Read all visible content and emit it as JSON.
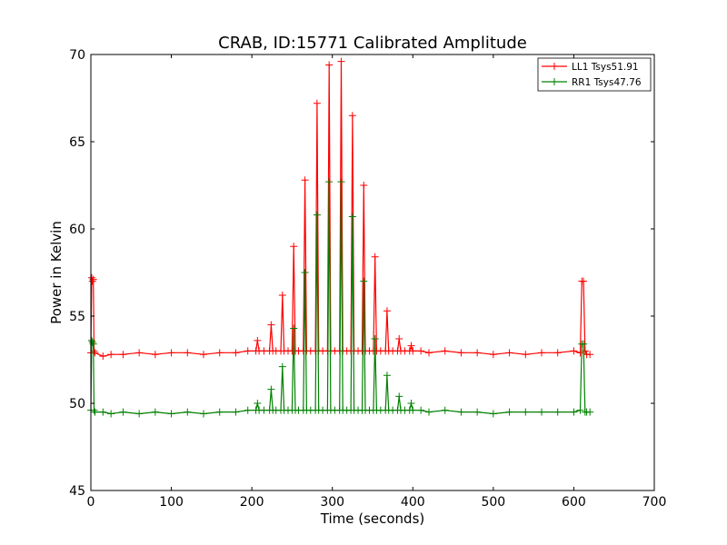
{
  "chart_data": {
    "type": "line",
    "title": "CRAB, ID:15771 Calibrated Amplitude",
    "xlabel": "Time (seconds)",
    "ylabel": "Power in Kelvin",
    "xlim": [
      0,
      700
    ],
    "ylim": [
      45,
      70
    ],
    "xticks": [
      0,
      100,
      200,
      300,
      400,
      500,
      600,
      700
    ],
    "yticks": [
      45,
      50,
      55,
      60,
      65,
      70
    ],
    "xtick_labels": [
      "0",
      "100",
      "200",
      "300",
      "400",
      "500",
      "600",
      "700"
    ],
    "ytick_labels": [
      "45",
      "50",
      "55",
      "60",
      "65",
      "70"
    ],
    "grid": false,
    "legend_position": "top-right",
    "marker": "plus",
    "series": [
      {
        "name": "LL1 Tsys51.91",
        "color": "#ff0000",
        "x": [
          0,
          1,
          2,
          3,
          4,
          5,
          15,
          25,
          40,
          60,
          80,
          100,
          120,
          140,
          160,
          180,
          195,
          205,
          207,
          209,
          215,
          222,
          224,
          226,
          230,
          236,
          238,
          240,
          245,
          250,
          252,
          254,
          258,
          264,
          266,
          268,
          273,
          279,
          281,
          283,
          288,
          294,
          296,
          298,
          303,
          309,
          311,
          313,
          318,
          323,
          325,
          327,
          332,
          337,
          339,
          341,
          346,
          351,
          353,
          355,
          360,
          366,
          368,
          370,
          375,
          381,
          383,
          385,
          390,
          396,
          398,
          400,
          410,
          420,
          440,
          460,
          480,
          500,
          520,
          540,
          560,
          580,
          600,
          608,
          610,
          612,
          614,
          616,
          620
        ],
        "y": [
          52.9,
          57.2,
          57.0,
          57.1,
          53.0,
          52.9,
          52.7,
          52.8,
          52.8,
          52.9,
          52.8,
          52.9,
          52.9,
          52.8,
          52.9,
          52.9,
          53.0,
          53.0,
          53.6,
          53.0,
          53.0,
          53.0,
          54.5,
          53.0,
          53.0,
          53.0,
          56.2,
          53.0,
          53.0,
          53.0,
          59.0,
          53.0,
          53.0,
          53.0,
          62.8,
          53.0,
          53.0,
          53.0,
          67.2,
          53.0,
          53.0,
          53.0,
          69.4,
          53.0,
          53.0,
          53.0,
          69.6,
          53.0,
          53.0,
          53.0,
          66.5,
          53.0,
          53.0,
          53.0,
          62.5,
          53.0,
          53.0,
          53.0,
          58.4,
          53.0,
          53.0,
          53.0,
          55.3,
          53.0,
          53.0,
          53.0,
          53.7,
          53.0,
          53.0,
          53.0,
          53.3,
          53.0,
          53.0,
          52.9,
          53.0,
          52.9,
          52.9,
          52.8,
          52.9,
          52.8,
          52.9,
          52.9,
          53.0,
          52.9,
          57.0,
          57.0,
          53.0,
          52.8,
          52.8
        ]
      },
      {
        "name": "RR1 Tsys47.76",
        "color": "#008000",
        "x": [
          0,
          1,
          2,
          3,
          4,
          5,
          15,
          25,
          40,
          60,
          80,
          100,
          120,
          140,
          160,
          180,
          195,
          205,
          207,
          209,
          215,
          222,
          224,
          226,
          230,
          236,
          238,
          240,
          245,
          250,
          252,
          254,
          258,
          264,
          266,
          268,
          273,
          279,
          281,
          283,
          288,
          294,
          296,
          298,
          303,
          309,
          311,
          313,
          318,
          323,
          325,
          327,
          332,
          337,
          339,
          341,
          346,
          351,
          353,
          355,
          360,
          366,
          368,
          370,
          375,
          381,
          383,
          385,
          390,
          396,
          398,
          400,
          410,
          420,
          440,
          460,
          480,
          500,
          520,
          540,
          560,
          580,
          600,
          608,
          610,
          612,
          614,
          616,
          620
        ],
        "y": [
          49.6,
          53.6,
          53.5,
          53.4,
          49.6,
          49.5,
          49.5,
          49.4,
          49.5,
          49.4,
          49.5,
          49.4,
          49.5,
          49.4,
          49.5,
          49.5,
          49.6,
          49.6,
          50.0,
          49.6,
          49.6,
          49.6,
          50.8,
          49.6,
          49.6,
          49.6,
          52.1,
          49.6,
          49.6,
          49.6,
          54.3,
          49.6,
          49.6,
          49.6,
          57.5,
          49.6,
          49.6,
          49.6,
          60.8,
          49.6,
          49.6,
          49.6,
          62.7,
          49.6,
          49.6,
          49.6,
          62.7,
          49.6,
          49.6,
          49.6,
          60.7,
          49.6,
          49.6,
          49.6,
          57.0,
          49.6,
          49.6,
          49.6,
          53.7,
          49.6,
          49.6,
          49.6,
          51.6,
          49.6,
          49.6,
          49.6,
          50.4,
          49.6,
          49.6,
          49.6,
          50.0,
          49.6,
          49.6,
          49.5,
          49.6,
          49.5,
          49.5,
          49.4,
          49.5,
          49.5,
          49.5,
          49.5,
          49.5,
          49.6,
          53.4,
          53.4,
          49.5,
          49.5,
          49.5
        ]
      }
    ]
  }
}
